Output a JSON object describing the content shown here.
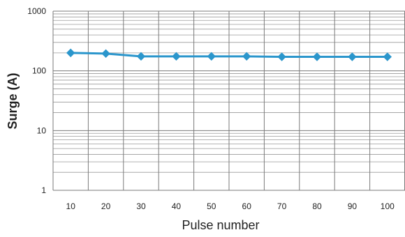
{
  "chart_data": {
    "type": "line",
    "xlabel": "Pulse number",
    "ylabel": "Surge (A)",
    "y_scale": "log",
    "ylim": [
      1,
      1000
    ],
    "y_ticks": [
      {
        "value": 1,
        "label": "1"
      },
      {
        "value": 10,
        "label": "10"
      },
      {
        "value": 100,
        "label": "100"
      },
      {
        "value": 1000,
        "label": "1000"
      }
    ],
    "categories": [
      "10",
      "20",
      "30",
      "40",
      "50",
      "60",
      "70",
      "80",
      "90",
      "100"
    ],
    "series": [
      {
        "color": "#2b96cc",
        "marker": "diamond",
        "values": [
          200,
          195,
          175,
          175,
          175,
          175,
          172,
          172,
          172,
          172
        ]
      }
    ],
    "grid": true,
    "legend": "none"
  }
}
